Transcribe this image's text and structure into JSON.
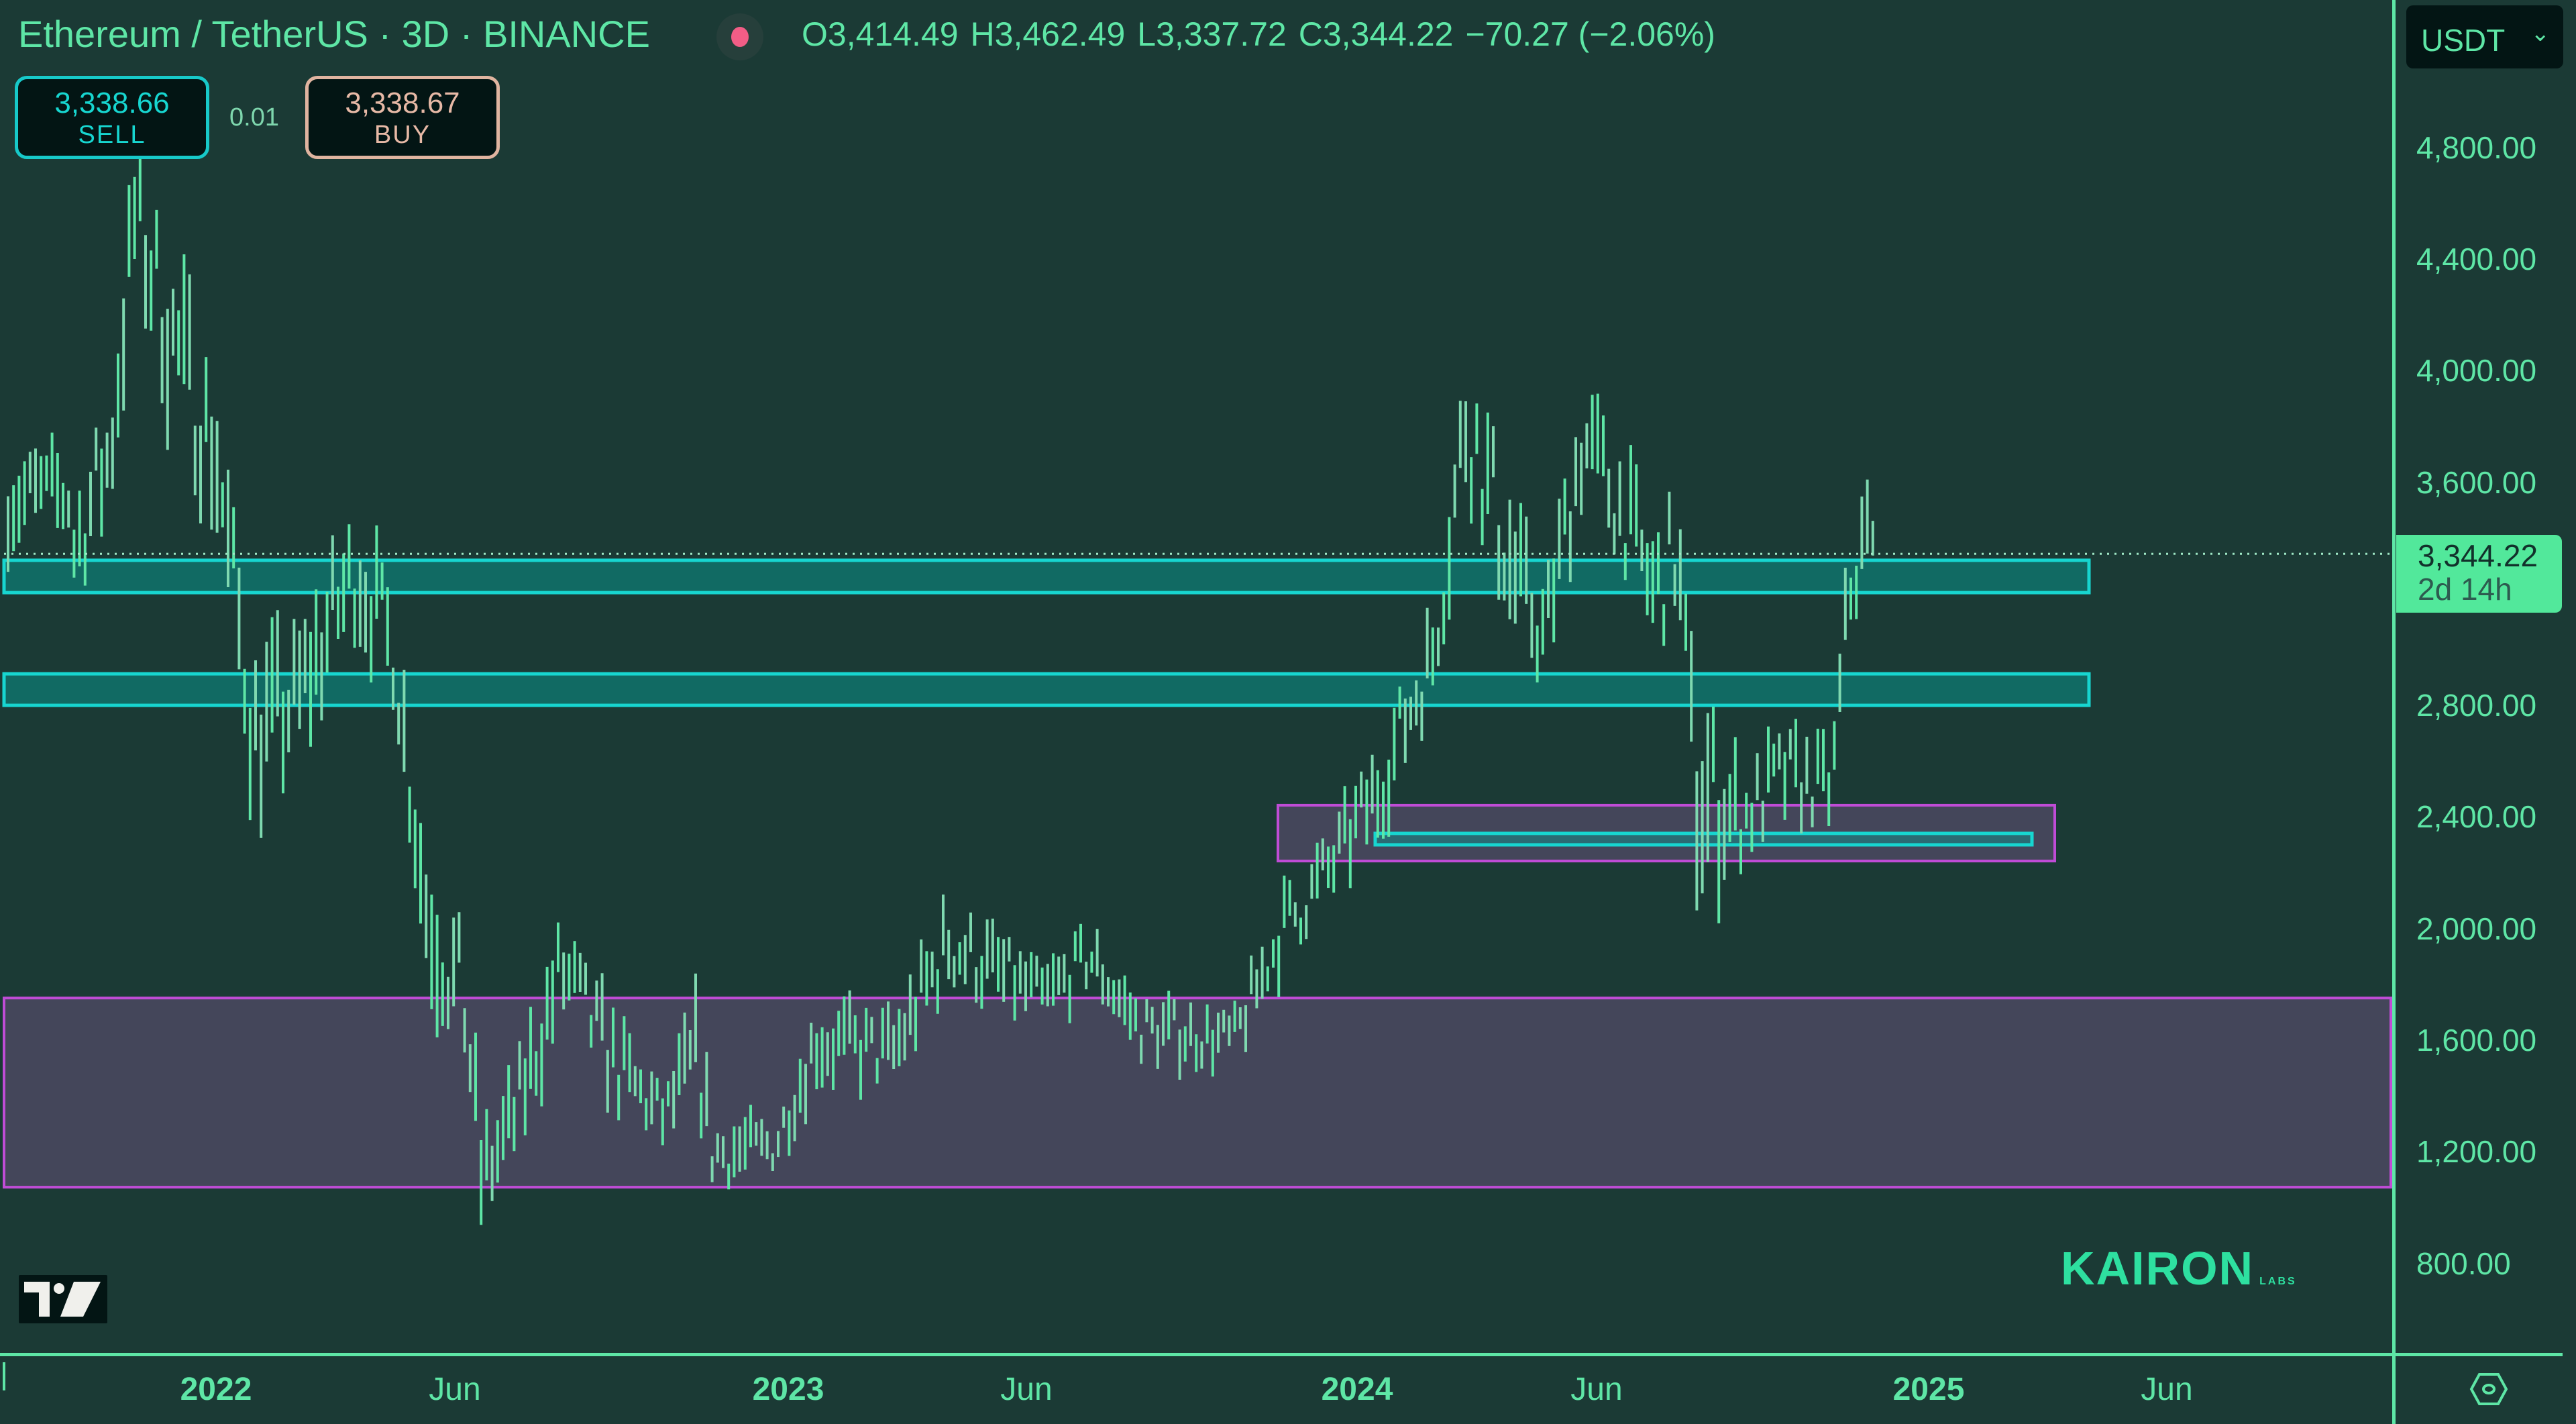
{
  "header": {
    "title": "Ethereum / TetherUS · 3D · BINANCE",
    "ohlc": {
      "open": "O3,414.49",
      "high": "H3,462.49",
      "low": "L3,337.72",
      "close": "C3,344.22",
      "change": "−70.27 (−2.06%)"
    },
    "live_dot_color": "#f25d86"
  },
  "trade": {
    "sell_price": "3,338.66",
    "sell_label": "SELL",
    "spread": "0.01",
    "buy_price": "3,338.67",
    "buy_label": "BUY"
  },
  "currency": {
    "selected": "USDT",
    "chevron": "⌄"
  },
  "price_axis": {
    "labels": [
      "4,800.00",
      "4,400.00",
      "4,000.00",
      "3,600.00",
      "2,800.00",
      "2,400.00",
      "2,000.00",
      "1,600.00",
      "1,200.00",
      "800.00"
    ],
    "last_price": "3,344.22",
    "countdown": "2d 14h"
  },
  "time_axis": {
    "labels": [
      {
        "text": "2022",
        "year": true
      },
      {
        "text": "Jun",
        "year": false
      },
      {
        "text": "2023",
        "year": true
      },
      {
        "text": "Jun",
        "year": false
      },
      {
        "text": "2024",
        "year": true
      },
      {
        "text": "Jun",
        "year": false
      },
      {
        "text": "2025",
        "year": true
      },
      {
        "text": "Jun",
        "year": false
      }
    ]
  },
  "branding": {
    "watermark": "KAIRON",
    "watermark_sub": "LABS"
  },
  "colors": {
    "background": "#1b3a35",
    "bars": "#5ee6a6",
    "cyan_zone_border": "#17d6d0",
    "cyan_zone_fill": "#116a63",
    "purple_zone_border": "#c04cd6",
    "purple_zone_fill": "#44465a",
    "accent": "#52e89b"
  },
  "chart_data": {
    "type": "ohlc_bar",
    "title": "Ethereum / TetherUS · 3D · BINANCE",
    "xlabel": "",
    "ylabel": "USDT",
    "ylim": [
      750,
      5050
    ],
    "y_ticks": [
      800,
      1200,
      1600,
      2000,
      2400,
      2800,
      3600,
      4000,
      4400,
      4800
    ],
    "x_ticks": [
      "2022",
      "Jun",
      "2023",
      "Jun",
      "2024",
      "Jun",
      "2025",
      "Jun"
    ],
    "last_price": 3344.22,
    "last_bar": {
      "open": 3414.49,
      "high": 3462.49,
      "low": 3337.72,
      "close": 3344.22,
      "change": -70.27,
      "change_pct": -2.06
    },
    "grid": false,
    "zones": [
      {
        "name": "resistance-zone-upper",
        "color": "cyan",
        "price_top": 3321,
        "price_bottom": 3205,
        "start": "2021-10",
        "end": "2025-04"
      },
      {
        "name": "support-zone-mid",
        "color": "cyan",
        "price_top": 2914,
        "price_bottom": 2801,
        "start": "2021-10",
        "end": "2025-04"
      },
      {
        "name": "demand-zone-small",
        "color": "purple",
        "price_top": 2443,
        "price_bottom": 2243,
        "start": "2023-12",
        "end": "2025-03"
      },
      {
        "name": "demand-line-inner",
        "color": "cyan",
        "price_top": 2342,
        "price_bottom": 2301,
        "start": "2024-02",
        "end": "2025-03"
      },
      {
        "name": "accumulation-zone-large",
        "color": "purple",
        "price_top": 1752,
        "price_bottom": 1074,
        "start": "2021-10",
        "end": "2025-09"
      }
    ],
    "price_path_keypoints": [
      {
        "date": "2021-10-01",
        "mid": 3350,
        "range": 320
      },
      {
        "date": "2021-10-25",
        "mid": 3700,
        "range": 450
      },
      {
        "date": "2021-11-10",
        "mid": 4550,
        "range": 450
      },
      {
        "date": "2021-12-05",
        "mid": 4100,
        "range": 550
      },
      {
        "date": "2022-01-01",
        "mid": 3700,
        "range": 450
      },
      {
        "date": "2022-01-25",
        "mid": 2700,
        "range": 500
      },
      {
        "date": "2022-02-20",
        "mid": 2800,
        "range": 450
      },
      {
        "date": "2022-04-01",
        "mid": 3300,
        "range": 400
      },
      {
        "date": "2022-04-25",
        "mid": 3000,
        "range": 350
      },
      {
        "date": "2022-05-15",
        "mid": 2100,
        "range": 500
      },
      {
        "date": "2022-06-10",
        "mid": 1700,
        "range": 450
      },
      {
        "date": "2022-06-20",
        "mid": 1100,
        "range": 350
      },
      {
        "date": "2022-07-10",
        "mid": 1300,
        "range": 300
      },
      {
        "date": "2022-08-10",
        "mid": 1850,
        "range": 350
      },
      {
        "date": "2022-09-15",
        "mid": 1500,
        "range": 300
      },
      {
        "date": "2022-10-15",
        "mid": 1320,
        "range": 200
      },
      {
        "date": "2022-11-05",
        "mid": 1550,
        "range": 350
      },
      {
        "date": "2022-11-15",
        "mid": 1200,
        "range": 250
      },
      {
        "date": "2022-12-25",
        "mid": 1220,
        "range": 160
      },
      {
        "date": "2023-01-20",
        "mid": 1600,
        "range": 250
      },
      {
        "date": "2023-03-10",
        "mid": 1550,
        "range": 250
      },
      {
        "date": "2023-04-15",
        "mid": 1950,
        "range": 300
      },
      {
        "date": "2023-06-15",
        "mid": 1750,
        "range": 200
      },
      {
        "date": "2023-07-15",
        "mid": 1900,
        "range": 200
      },
      {
        "date": "2023-08-15",
        "mid": 1650,
        "range": 200
      },
      {
        "date": "2023-10-15",
        "mid": 1600,
        "range": 180
      },
      {
        "date": "2023-11-15",
        "mid": 2000,
        "range": 250
      },
      {
        "date": "2023-12-20",
        "mid": 2250,
        "range": 250
      },
      {
        "date": "2024-01-15",
        "mid": 2500,
        "range": 300
      },
      {
        "date": "2024-02-20",
        "mid": 3000,
        "range": 300
      },
      {
        "date": "2024-03-12",
        "mid": 3850,
        "range": 500
      },
      {
        "date": "2024-04-15",
        "mid": 3200,
        "range": 450
      },
      {
        "date": "2024-05-01",
        "mid": 3050,
        "range": 300
      },
      {
        "date": "2024-05-25",
        "mid": 3750,
        "range": 400
      },
      {
        "date": "2024-06-20",
        "mid": 3500,
        "range": 350
      },
      {
        "date": "2024-07-10",
        "mid": 3200,
        "range": 400
      },
      {
        "date": "2024-07-25",
        "mid": 3350,
        "range": 400
      },
      {
        "date": "2024-08-05",
        "mid": 2500,
        "range": 700
      },
      {
        "date": "2024-09-05",
        "mid": 2400,
        "range": 300
      },
      {
        "date": "2024-10-01",
        "mid": 2550,
        "range": 300
      },
      {
        "date": "2024-11-01",
        "mid": 2500,
        "range": 250
      },
      {
        "date": "2024-11-12",
        "mid": 3200,
        "range": 350
      },
      {
        "date": "2024-11-30",
        "mid": 3550,
        "range": 300
      }
    ]
  }
}
